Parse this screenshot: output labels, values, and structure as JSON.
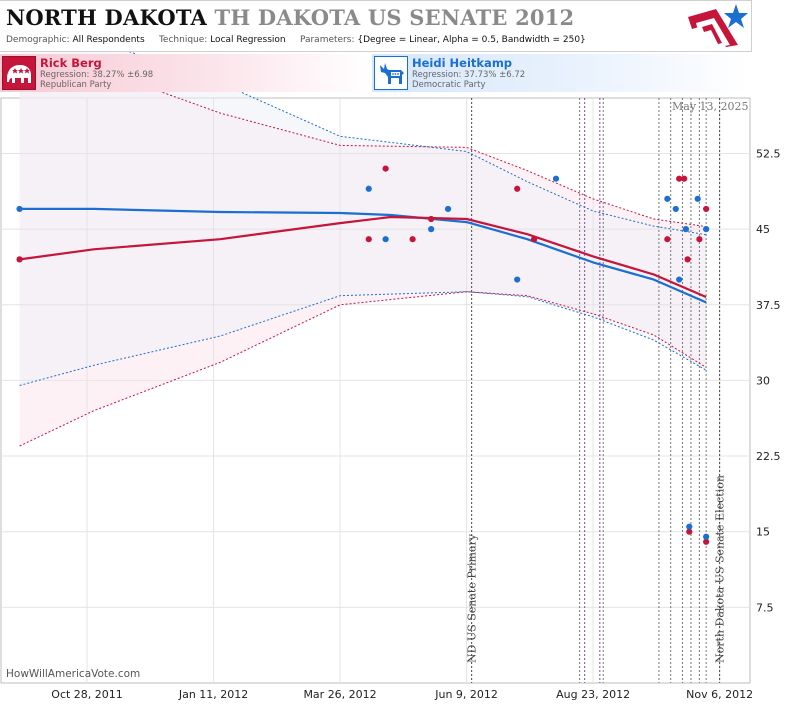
{
  "header": {
    "title_state": "NORTH DAKOTA",
    "title_race": "TH DAKOTA US SENATE 2012",
    "demographic_label": "Demographic:",
    "demographic_value": "All Respondents",
    "technique_label": "Technique:",
    "technique_value": "Local Regression",
    "parameters_label": "Parameters:",
    "parameters_value": "{Degree = Linear, Alpha = 0.5, Bandwidth = 250}",
    "logo_icon": "stars-stripes-logo-icon"
  },
  "candidates": [
    {
      "name": "Rick Berg",
      "regression": "Regression: 38.27% ±6.98",
      "party": "Republican Party",
      "icon": "elephant-icon",
      "color": "#c6153b"
    },
    {
      "name": "Heidi Heitkamp",
      "regression": "Regression: 37.73% ±6.72",
      "party": "Democratic Party",
      "icon": "donkey-icon",
      "color": "#1b6fd0"
    }
  ],
  "as_of": "May 13, 2025",
  "credit": "HowWillAmericaVote.com",
  "chart_data": {
    "type": "scatter",
    "x_axis": {
      "type": "date",
      "range": [
        "2011-09-07",
        "2012-11-24"
      ],
      "ticks": [
        {
          "date": "2011-10-28",
          "label": "Oct 28, 2011"
        },
        {
          "date": "2012-01-11",
          "label": "Jan 11, 2012"
        },
        {
          "date": "2012-03-26",
          "label": "Mar 26, 2012"
        },
        {
          "date": "2012-06-09",
          "label": "Jun 9, 2012"
        },
        {
          "date": "2012-08-23",
          "label": "Aug 23, 2012"
        },
        {
          "date": "2012-11-06",
          "label": "Nov 6, 2012"
        }
      ]
    },
    "y_axis": {
      "range": [
        0,
        58
      ],
      "ticks": [
        7.5,
        15,
        22.5,
        30,
        37.5,
        45,
        52.5
      ],
      "labels": [
        "7.5",
        "15",
        "22.5",
        "30",
        "37.5",
        "45",
        "52.5"
      ],
      "position": "right"
    },
    "grid": true,
    "events": [
      {
        "date": "2012-06-12",
        "label": "ND US Senate Primary"
      },
      {
        "date": "2012-11-06",
        "label": "North Dakota US Senate Election"
      }
    ],
    "poll_lines": [
      {
        "date": "2012-08-15",
        "color": "#777777"
      },
      {
        "date": "2012-08-18",
        "color": "#7a4aa0"
      },
      {
        "date": "2012-08-27",
        "color": "#7a4aa0"
      },
      {
        "date": "2012-08-29",
        "color": "#777777"
      },
      {
        "date": "2012-10-01",
        "color": "#777777"
      },
      {
        "date": "2012-10-08",
        "color": "#777777"
      },
      {
        "date": "2012-10-15",
        "color": "#777777"
      },
      {
        "date": "2012-10-20",
        "color": "#777777"
      },
      {
        "date": "2012-10-25",
        "color": "#777777"
      },
      {
        "date": "2012-10-29",
        "color": "#777777"
      }
    ],
    "series": [
      {
        "name": "Rick Berg",
        "color": "#c6153b",
        "band_fill": "#fbe5ec",
        "points": [
          {
            "x": "2011-09-18",
            "y": 42.0
          },
          {
            "x": "2012-04-12",
            "y": 44.0
          },
          {
            "x": "2012-04-22",
            "y": 51.0
          },
          {
            "x": "2012-05-08",
            "y": 44.0
          },
          {
            "x": "2012-05-19",
            "y": 46.0
          },
          {
            "x": "2012-07-09",
            "y": 49.0
          },
          {
            "x": "2012-07-19",
            "y": 44.0
          },
          {
            "x": "2012-10-06",
            "y": 44.0
          },
          {
            "x": "2012-10-13",
            "y": 50.0
          },
          {
            "x": "2012-10-16",
            "y": 50.0
          },
          {
            "x": "2012-10-18",
            "y": 42.0
          },
          {
            "x": "2012-10-19",
            "y": 15.0
          },
          {
            "x": "2012-10-25",
            "y": 44.0
          },
          {
            "x": "2012-10-29",
            "y": 47.0
          },
          {
            "x": "2012-10-29",
            "y": 14.0
          }
        ],
        "regression": [
          {
            "x": "2011-09-18",
            "y": 42.0
          },
          {
            "x": "2011-11-01",
            "y": 43.0
          },
          {
            "x": "2012-01-15",
            "y": 44.0
          },
          {
            "x": "2012-03-26",
            "y": 45.6
          },
          {
            "x": "2012-04-25",
            "y": 46.2
          },
          {
            "x": "2012-06-09",
            "y": 46.0
          },
          {
            "x": "2012-07-15",
            "y": 44.5
          },
          {
            "x": "2012-08-23",
            "y": 42.3
          },
          {
            "x": "2012-09-28",
            "y": 40.5
          },
          {
            "x": "2012-10-29",
            "y": 38.27
          }
        ],
        "band_upper": [
          {
            "x": "2011-09-18",
            "y": 62.0
          },
          {
            "x": "2011-11-01",
            "y": 61.0
          },
          {
            "x": "2012-01-15",
            "y": 56.5
          },
          {
            "x": "2012-03-26",
            "y": 53.3
          },
          {
            "x": "2012-06-09",
            "y": 53.1
          },
          {
            "x": "2012-07-15",
            "y": 50.8
          },
          {
            "x": "2012-08-23",
            "y": 48.0
          },
          {
            "x": "2012-09-28",
            "y": 46.0
          },
          {
            "x": "2012-10-29",
            "y": 45.25
          }
        ],
        "band_lower": [
          {
            "x": "2011-09-18",
            "y": 23.5
          },
          {
            "x": "2011-11-01",
            "y": 27.0
          },
          {
            "x": "2012-01-15",
            "y": 31.8
          },
          {
            "x": "2012-03-26",
            "y": 37.5
          },
          {
            "x": "2012-06-09",
            "y": 38.8
          },
          {
            "x": "2012-07-15",
            "y": 38.4
          },
          {
            "x": "2012-08-23",
            "y": 36.6
          },
          {
            "x": "2012-09-28",
            "y": 34.5
          },
          {
            "x": "2012-10-29",
            "y": 31.29
          }
        ]
      },
      {
        "name": "Heidi Heitkamp",
        "color": "#1b6fd0",
        "band_fill": "#eef0f8",
        "points": [
          {
            "x": "2011-09-18",
            "y": 47.0
          },
          {
            "x": "2012-04-12",
            "y": 49.0
          },
          {
            "x": "2012-04-22",
            "y": 44.0
          },
          {
            "x": "2012-05-19",
            "y": 45.0
          },
          {
            "x": "2012-05-29",
            "y": 47.0
          },
          {
            "x": "2012-07-09",
            "y": 40.0
          },
          {
            "x": "2012-08-01",
            "y": 50.0
          },
          {
            "x": "2012-10-06",
            "y": 48.0
          },
          {
            "x": "2012-10-11",
            "y": 47.0
          },
          {
            "x": "2012-10-13",
            "y": 40.0
          },
          {
            "x": "2012-10-17",
            "y": 45.0
          },
          {
            "x": "2012-10-19",
            "y": 15.5
          },
          {
            "x": "2012-10-24",
            "y": 48.0
          },
          {
            "x": "2012-10-29",
            "y": 45.0
          },
          {
            "x": "2012-10-29",
            "y": 14.5
          }
        ],
        "regression": [
          {
            "x": "2011-09-18",
            "y": 47.0
          },
          {
            "x": "2011-11-01",
            "y": 47.0
          },
          {
            "x": "2012-01-15",
            "y": 46.7
          },
          {
            "x": "2012-03-26",
            "y": 46.6
          },
          {
            "x": "2012-04-25",
            "y": 46.4
          },
          {
            "x": "2012-06-09",
            "y": 45.7
          },
          {
            "x": "2012-07-15",
            "y": 44.0
          },
          {
            "x": "2012-08-23",
            "y": 41.7
          },
          {
            "x": "2012-09-28",
            "y": 40.0
          },
          {
            "x": "2012-10-29",
            "y": 37.73
          }
        ],
        "band_upper": [
          {
            "x": "2011-09-18",
            "y": 64.5
          },
          {
            "x": "2011-11-01",
            "y": 63.8
          },
          {
            "x": "2012-01-15",
            "y": 59.5
          },
          {
            "x": "2012-03-26",
            "y": 54.2
          },
          {
            "x": "2012-06-09",
            "y": 52.7
          },
          {
            "x": "2012-07-15",
            "y": 49.7
          },
          {
            "x": "2012-08-23",
            "y": 46.8
          },
          {
            "x": "2012-09-28",
            "y": 45.3
          },
          {
            "x": "2012-10-29",
            "y": 44.45
          }
        ],
        "band_lower": [
          {
            "x": "2011-09-18",
            "y": 29.5
          },
          {
            "x": "2011-11-01",
            "y": 31.5
          },
          {
            "x": "2012-01-15",
            "y": 34.4
          },
          {
            "x": "2012-03-26",
            "y": 38.4
          },
          {
            "x": "2012-06-09",
            "y": 38.8
          },
          {
            "x": "2012-07-15",
            "y": 38.3
          },
          {
            "x": "2012-08-23",
            "y": 36.3
          },
          {
            "x": "2012-09-28",
            "y": 34.0
          },
          {
            "x": "2012-10-29",
            "y": 31.01
          }
        ]
      }
    ]
  }
}
